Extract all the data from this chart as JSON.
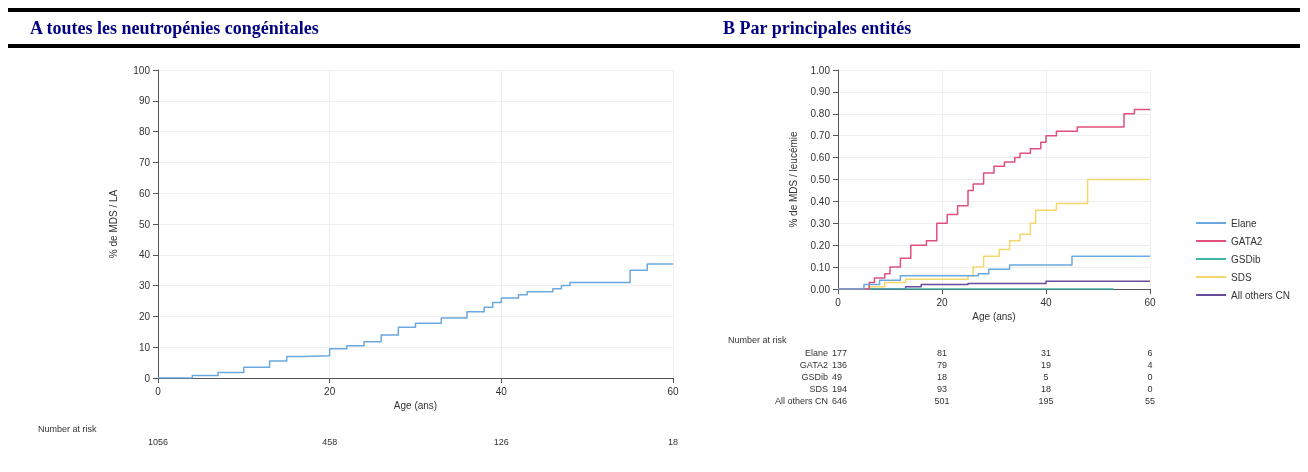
{
  "chart_data": [
    {
      "type": "step",
      "title": "A toutes les neutropénies congénitales",
      "xlabel": "Age (ans)",
      "ylabel": "% de MDS / LA",
      "xlim": [
        0,
        60
      ],
      "xticks": [
        0,
        20,
        40,
        60
      ],
      "ylim": [
        0,
        100
      ],
      "yticks": [
        0,
        10,
        20,
        30,
        40,
        50,
        60,
        70,
        80,
        90,
        100
      ],
      "grid": true,
      "legend": false,
      "marker": "none",
      "line_style": "solid",
      "series": [
        {
          "color": "#6aa9e0",
          "x": [
            0,
            4,
            7,
            10,
            13,
            15,
            17,
            20,
            22,
            24,
            26,
            28,
            30,
            33,
            36,
            38,
            39,
            40,
            42,
            43,
            46,
            47,
            48,
            55,
            57,
            60
          ],
          "values": [
            0,
            0.8,
            1.8,
            3.5,
            5.5,
            7,
            7.2,
            9.5,
            10.5,
            11.8,
            14,
            16.5,
            17.8,
            19.5,
            21.5,
            23,
            24.5,
            26,
            27,
            28,
            29,
            30,
            31,
            35,
            37,
            37
          ]
        }
      ],
      "annotations": [
        "Number at risk",
        "1056",
        "458",
        "126",
        "18"
      ]
    },
    {
      "type": "step",
      "title": "B Par principales entités",
      "xlabel": "Age (ans)",
      "ylabel": "% de MDS / leucémie",
      "xlim": [
        0,
        60
      ],
      "xticks": [
        0,
        20,
        40,
        60
      ],
      "ylim": [
        0,
        1
      ],
      "yticks": [
        {
          "value": 0,
          "label": "0.00"
        },
        {
          "value": 0.1,
          "label": "0.10"
        },
        {
          "value": 0.2,
          "label": "0.20"
        },
        {
          "value": 0.3,
          "label": "0.30"
        },
        {
          "value": 0.4,
          "label": "0.40"
        },
        {
          "value": 0.5,
          "label": "0.50"
        },
        {
          "value": 0.6,
          "label": "0.60"
        },
        {
          "value": 0.7,
          "label": "0.70"
        },
        {
          "value": 0.8,
          "label": "0.80"
        },
        {
          "value": 0.9,
          "label": "0.90"
        },
        {
          "value": 1,
          "label": "1.00"
        }
      ],
      "grid": true,
      "legend": "right",
      "marker": "none",
      "line_style": "solid",
      "series": [
        {
          "name": "Elane",
          "color": "#6aa9e0",
          "x": [
            0,
            5,
            8,
            12,
            27,
            29,
            33,
            45,
            60
          ],
          "values": [
            0,
            0.02,
            0.04,
            0.06,
            0.07,
            0.09,
            0.11,
            0.15,
            0.15
          ]
        },
        {
          "name": "GATA2",
          "color": "#e0507a",
          "x": [
            0,
            6,
            7,
            9,
            10,
            12,
            14,
            17,
            19,
            21,
            23,
            25,
            26,
            28,
            30,
            32,
            34,
            35,
            37,
            39,
            40,
            42,
            46,
            55,
            57,
            60
          ],
          "values": [
            0,
            0.03,
            0.05,
            0.07,
            0.1,
            0.14,
            0.2,
            0.22,
            0.3,
            0.34,
            0.38,
            0.45,
            0.48,
            0.53,
            0.56,
            0.58,
            0.6,
            0.62,
            0.64,
            0.67,
            0.7,
            0.72,
            0.74,
            0.8,
            0.82,
            0.82
          ]
        },
        {
          "name": "GSDib",
          "color": "#3fb4a8",
          "x": [
            0,
            53
          ],
          "values": [
            0,
            0
          ]
        },
        {
          "name": "SDS",
          "color": "#f5d66b",
          "x": [
            0,
            6,
            9,
            13,
            25,
            26,
            28,
            31,
            33,
            35,
            37,
            38,
            42,
            48,
            60
          ],
          "values": [
            0,
            0.01,
            0.03,
            0.045,
            0.06,
            0.1,
            0.15,
            0.18,
            0.22,
            0.25,
            0.3,
            0.36,
            0.39,
            0.5,
            0.5
          ]
        },
        {
          "name": "All others CN",
          "color": "#6a4c9c",
          "x": [
            0,
            13,
            16,
            25,
            40,
            60
          ],
          "values": [
            0,
            0.01,
            0.02,
            0.025,
            0.035,
            0.035
          ]
        }
      ],
      "annotations": [
        "Number at risk",
        "Elane",
        "177",
        "81",
        "31",
        "6",
        "GATA2",
        "136",
        "79",
        "19",
        "4",
        "GSDib",
        "49",
        "18",
        "5",
        "0",
        "SDS",
        "194",
        "93",
        "18",
        "0",
        "All others CN",
        "646",
        "501",
        "195",
        "55"
      ]
    }
  ]
}
